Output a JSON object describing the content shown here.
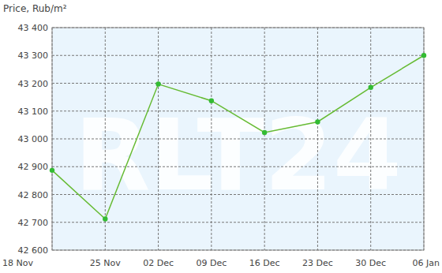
{
  "chart_data": {
    "type": "line",
    "title": "Price, Rub/m²",
    "watermark": "RLT24",
    "categories": [
      "18 Nov",
      "25 Nov",
      "02 Dec",
      "09 Dec",
      "16 Dec",
      "23 Dec",
      "30 Dec",
      "06 Jan"
    ],
    "values": [
      42887,
      42712,
      43197,
      43137,
      43023,
      43061,
      43185,
      43300
    ],
    "color": "#66bb33",
    "marker": "circle",
    "ylim": [
      42600,
      43400
    ],
    "yticks": [
      {
        "value": 42600,
        "label": "42 600"
      },
      {
        "value": 42700,
        "label": "42 700"
      },
      {
        "value": 42800,
        "label": "42 800"
      },
      {
        "value": 42900,
        "label": "42 900"
      },
      {
        "value": 43000,
        "label": "43 000"
      },
      {
        "value": 43100,
        "label": "43 100"
      },
      {
        "value": 43200,
        "label": "43 200"
      },
      {
        "value": 43300,
        "label": "43 300"
      },
      {
        "value": 43400,
        "label": "43 400"
      }
    ],
    "grid": true
  }
}
